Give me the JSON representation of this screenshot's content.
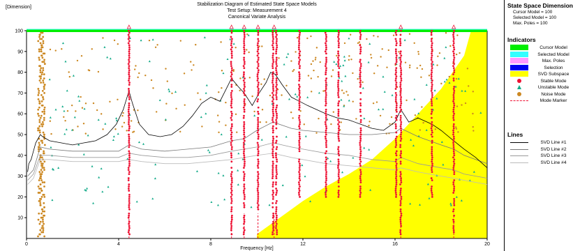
{
  "chart_data": {
    "type": "scatter",
    "ylabel_tag": "[Dimension]",
    "title_lines": [
      "Stabilization Diagram of Estimated State Space Models",
      "Test Setup: Measurement 4",
      "Canonical Variate Analysis"
    ],
    "xlabel": "Frequency [Hz]",
    "xlim": [
      0,
      20
    ],
    "ylim": [
      0,
      100
    ],
    "x_ticks": [
      0,
      4,
      8,
      12,
      16,
      20
    ],
    "y_ticks": [
      10,
      20,
      30,
      40,
      50,
      60,
      70,
      80,
      90,
      100
    ],
    "grid": false,
    "mode_markers_hz": [
      4.45,
      8.9,
      9.45,
      10.05,
      10.75,
      16.25,
      18.55
    ],
    "stable_columns": [
      {
        "x": 4.45,
        "from": 2,
        "to": 100
      },
      {
        "x": 8.9,
        "from": 2,
        "to": 100
      },
      {
        "x": 9.45,
        "from": 2,
        "to": 100
      },
      {
        "x": 10.05,
        "from": 14,
        "to": 100
      },
      {
        "x": 10.7,
        "from": 2,
        "to": 100
      },
      {
        "x": 10.85,
        "from": 2,
        "to": 100
      },
      {
        "x": 11.85,
        "from": 20,
        "to": 100
      },
      {
        "x": 13.0,
        "from": 20,
        "to": 100
      },
      {
        "x": 13.55,
        "from": 20,
        "to": 100
      },
      {
        "x": 14.5,
        "from": 20,
        "to": 100
      },
      {
        "x": 16.05,
        "from": 20,
        "to": 100
      },
      {
        "x": 16.25,
        "from": 2,
        "to": 100
      },
      {
        "x": 17.6,
        "from": 20,
        "to": 100
      },
      {
        "x": 18.55,
        "from": 2,
        "to": 100
      }
    ],
    "noise_band_hz": [
      0.5,
      0.8
    ],
    "svd_subspace_boundary": [
      {
        "x": 10.0,
        "y": 2
      },
      {
        "x": 11.0,
        "y": 10
      },
      {
        "x": 12.0,
        "y": 18
      },
      {
        "x": 13.0,
        "y": 25
      },
      {
        "x": 14.0,
        "y": 31
      },
      {
        "x": 15.0,
        "y": 38
      },
      {
        "x": 16.0,
        "y": 48
      },
      {
        "x": 17.0,
        "y": 60
      },
      {
        "x": 18.0,
        "y": 72
      },
      {
        "x": 19.0,
        "y": 88
      },
      {
        "x": 19.3,
        "y": 100
      }
    ],
    "svd_lines": [
      {
        "name": "SVD Line #1",
        "color": "#000000",
        "points": [
          [
            0.05,
            32
          ],
          [
            0.1,
            36
          ],
          [
            0.2,
            38
          ],
          [
            0.3,
            42
          ],
          [
            0.4,
            46
          ],
          [
            0.5,
            48
          ],
          [
            0.6,
            50
          ],
          [
            0.7,
            49
          ],
          [
            1,
            47
          ],
          [
            1.5,
            46
          ],
          [
            2,
            45
          ],
          [
            2.5,
            46
          ],
          [
            3,
            47
          ],
          [
            3.5,
            50
          ],
          [
            3.9,
            55
          ],
          [
            4.2,
            62
          ],
          [
            4.45,
            71
          ],
          [
            4.6,
            65
          ],
          [
            4.9,
            55
          ],
          [
            5.3,
            50
          ],
          [
            5.8,
            49
          ],
          [
            6.3,
            50
          ],
          [
            6.8,
            54
          ],
          [
            7.2,
            59
          ],
          [
            7.6,
            65
          ],
          [
            8.0,
            68
          ],
          [
            8.4,
            66
          ],
          [
            8.9,
            77
          ],
          [
            9.2,
            73
          ],
          [
            9.45,
            70
          ],
          [
            9.8,
            64
          ],
          [
            10.1,
            70
          ],
          [
            10.4,
            75
          ],
          [
            10.6,
            80
          ],
          [
            10.8,
            79
          ],
          [
            11.1,
            74
          ],
          [
            11.5,
            68
          ],
          [
            11.85,
            66
          ],
          [
            12.2,
            64
          ],
          [
            12.6,
            62
          ],
          [
            13.0,
            60
          ],
          [
            13.5,
            58
          ],
          [
            14.0,
            57
          ],
          [
            14.5,
            55
          ],
          [
            15.0,
            53
          ],
          [
            15.5,
            52
          ],
          [
            16.0,
            56
          ],
          [
            16.25,
            62
          ],
          [
            16.6,
            56
          ],
          [
            17.0,
            58
          ],
          [
            17.6,
            55
          ],
          [
            18.0,
            52
          ],
          [
            18.55,
            47
          ],
          [
            19.0,
            43
          ],
          [
            19.5,
            39
          ],
          [
            20,
            34
          ]
        ]
      },
      {
        "name": "SVD Line #2",
        "color": "#777777",
        "points": [
          [
            0.05,
            30
          ],
          [
            0.3,
            33
          ],
          [
            0.6,
            44
          ],
          [
            1,
            43
          ],
          [
            2,
            42
          ],
          [
            3,
            42
          ],
          [
            4,
            42
          ],
          [
            4.45,
            45
          ],
          [
            5,
            43
          ],
          [
            6,
            42
          ],
          [
            7,
            43
          ],
          [
            8,
            44
          ],
          [
            8.9,
            47
          ],
          [
            9.45,
            48
          ],
          [
            10,
            52
          ],
          [
            10.7,
            56
          ],
          [
            11.5,
            53
          ],
          [
            12,
            52
          ],
          [
            13,
            51
          ],
          [
            14,
            50
          ],
          [
            15,
            50
          ],
          [
            16,
            51
          ],
          [
            16.25,
            53
          ],
          [
            17,
            49
          ],
          [
            18,
            45
          ],
          [
            18.55,
            43
          ],
          [
            19,
            40
          ],
          [
            20,
            36
          ]
        ]
      },
      {
        "name": "SVD Line #3",
        "color": "#999999",
        "points": [
          [
            0.05,
            28
          ],
          [
            0.3,
            31
          ],
          [
            0.6,
            40
          ],
          [
            1,
            40
          ],
          [
            2,
            39
          ],
          [
            3,
            39
          ],
          [
            4,
            39
          ],
          [
            4.45,
            41
          ],
          [
            5,
            40
          ],
          [
            6,
            39
          ],
          [
            7,
            39
          ],
          [
            8,
            40
          ],
          [
            8.9,
            42
          ],
          [
            9.45,
            43
          ],
          [
            10,
            44
          ],
          [
            10.7,
            46
          ],
          [
            11.5,
            44
          ],
          [
            12,
            43
          ],
          [
            13,
            41
          ],
          [
            14,
            40
          ],
          [
            15,
            38
          ],
          [
            16,
            37
          ],
          [
            16.25,
            39
          ],
          [
            17,
            36
          ],
          [
            18,
            34
          ],
          [
            18.55,
            33
          ],
          [
            19,
            31
          ],
          [
            20,
            29
          ]
        ]
      },
      {
        "name": "SVD Line #4",
        "color": "#bbbbbb",
        "points": [
          [
            0.05,
            26
          ],
          [
            0.3,
            29
          ],
          [
            0.6,
            38
          ],
          [
            1,
            38
          ],
          [
            2,
            37
          ],
          [
            3,
            37
          ],
          [
            4,
            37
          ],
          [
            4.45,
            38
          ],
          [
            5,
            37
          ],
          [
            6,
            36
          ],
          [
            7,
            36
          ],
          [
            8,
            37
          ],
          [
            8.9,
            38
          ],
          [
            9.45,
            39
          ],
          [
            10,
            40
          ],
          [
            10.7,
            41
          ],
          [
            11.5,
            39
          ],
          [
            12,
            38
          ],
          [
            13,
            36
          ],
          [
            14,
            35
          ],
          [
            15,
            34
          ],
          [
            16,
            33
          ],
          [
            16.25,
            34
          ],
          [
            17,
            32
          ],
          [
            18,
            30
          ],
          [
            18.55,
            29
          ],
          [
            19,
            28
          ],
          [
            20,
            26
          ]
        ]
      }
    ]
  },
  "sidebar": {
    "dims_title": "State Space Dimensions",
    "cursor_model": "Cursor Model = 100",
    "selected_model": "Selected Model = 100",
    "max_poles": "Max. Poles = 100",
    "indicators_title": "Indicators",
    "indicators": [
      {
        "label": "Cursor Model",
        "color": "#00ee00",
        "kind": "swatch"
      },
      {
        "label": "Selected Model",
        "color": "#33ffff",
        "kind": "swatch"
      },
      {
        "label": "Max. Poles",
        "color": "#ff99ff",
        "kind": "swatch"
      },
      {
        "label": "Selection",
        "color": "#0000ee",
        "kind": "swatch"
      },
      {
        "label": "SVD Subspace",
        "color": "#ffff00",
        "kind": "swatch"
      },
      {
        "label": "Stable Mode",
        "color": "#ee1133",
        "kind": "dot"
      },
      {
        "label": "Unstable Mode",
        "color": "#11aa88",
        "kind": "triangle"
      },
      {
        "label": "Noise Mode",
        "color": "#cc8822",
        "kind": "dot"
      },
      {
        "label": "Mode Marker",
        "color": "#ee1133",
        "kind": "dash"
      }
    ],
    "lines_title": "Lines",
    "lines": [
      {
        "label": "SVD Line #1",
        "color": "#000000"
      },
      {
        "label": "SVD Line #2",
        "color": "#777777"
      },
      {
        "label": "SVD Line #3",
        "color": "#999999"
      },
      {
        "label": "SVD Line #4",
        "color": "#bbbbbb"
      }
    ]
  }
}
